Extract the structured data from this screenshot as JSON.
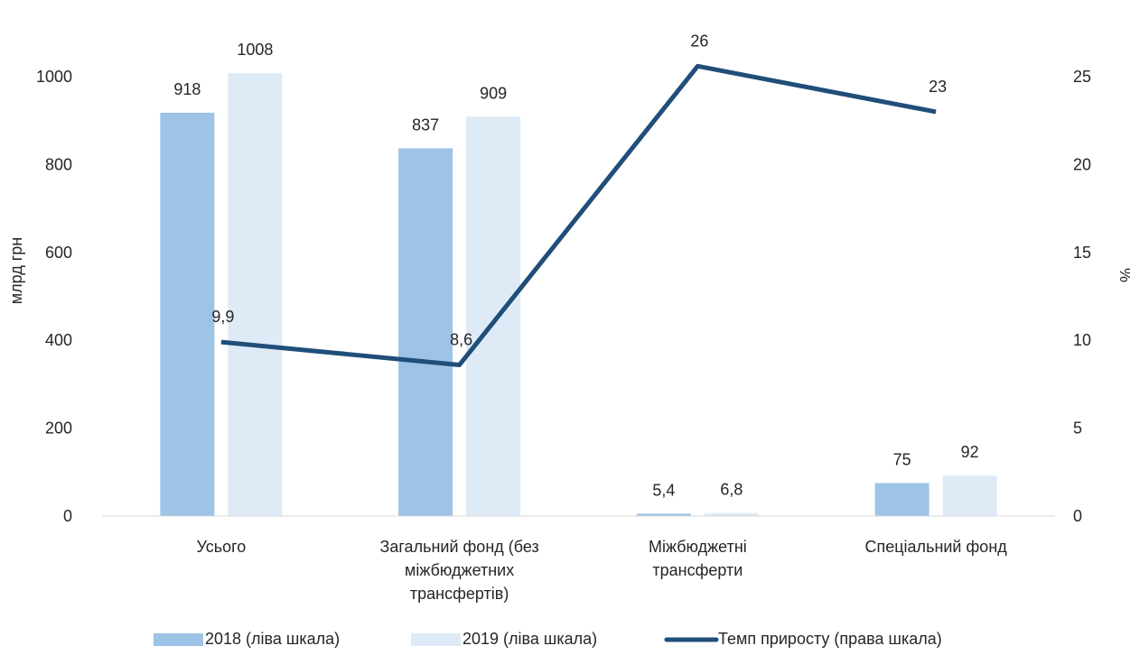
{
  "chart_data": {
    "type": "bar",
    "categories": [
      [
        "Усього"
      ],
      [
        "Загальний фонд (без",
        "міжбюджетних",
        "трансфертів)"
      ],
      [
        "Міжбюджетні",
        "трансферти"
      ],
      [
        "Спеціальний фонд"
      ]
    ],
    "series": [
      {
        "name": "2018 (ліва шкала)",
        "type": "bar",
        "axis": "left",
        "color": "#9dc3e6",
        "values": [
          918,
          837,
          5.4,
          75
        ],
        "labels": [
          "918",
          "837",
          "5,4",
          "75"
        ]
      },
      {
        "name": "2019 (ліва шкала)",
        "type": "bar",
        "axis": "left",
        "color": "#deebf7",
        "values": [
          1008,
          909,
          6.8,
          92
        ],
        "labels": [
          "1008",
          "909",
          "6,8",
          "92"
        ]
      },
      {
        "name": "Темп приросту (права шкала)",
        "type": "line",
        "axis": "right",
        "color": "#1f4e79",
        "values": [
          9.9,
          8.6,
          25.6,
          23.0
        ],
        "labels": [
          "9,9",
          "8,6",
          "26",
          "23"
        ]
      }
    ],
    "ylabel": "млрд грн",
    "y2label": "%",
    "ylim": [
      0,
      1000
    ],
    "yticks": [
      "0",
      "200",
      "400",
      "600",
      "800",
      "1000"
    ],
    "y2lim": [
      0,
      25
    ],
    "y2ticks": [
      "0",
      "5",
      "10",
      "15",
      "20",
      "25"
    ],
    "grid": false,
    "legend_position": "bottom"
  }
}
